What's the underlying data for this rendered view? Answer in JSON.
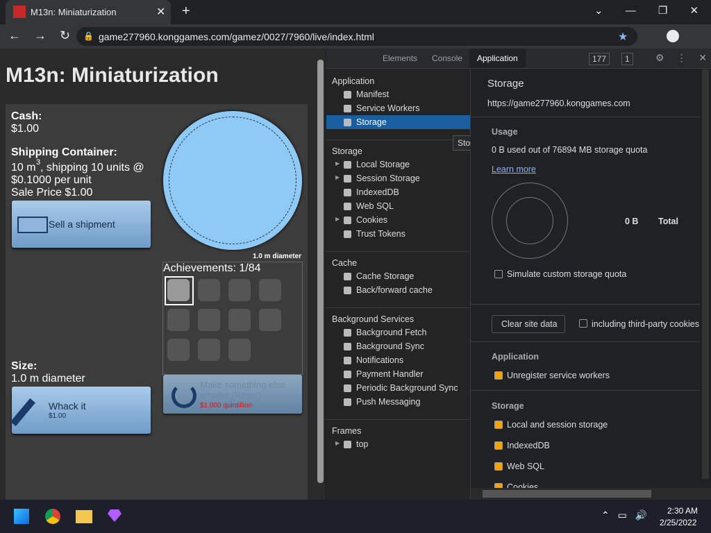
{
  "browser": {
    "tab_title": "M13n: Miniaturization",
    "url": "game277960.konggames.com/gamez/0027/7960/live/index.html"
  },
  "game": {
    "title": "M13n: Miniaturization",
    "cash_label": "Cash:",
    "cash_value": "$1.00",
    "container_label": "Shipping Container:",
    "container_volume": "10 m",
    "container_exponent": "3",
    "container_rest": ", shipping 10 units @",
    "container_rate": "$0.1000 per unit",
    "sale_price": "Sale Price $1.00",
    "sell_button": "Sell a shipment",
    "diameter_label": "1.0 m diameter",
    "achievements": "Achievements: 1/84",
    "size_label": "Size:",
    "size_value": "1.0 m diameter",
    "whack_button": "Whack it",
    "whack_price": "$1.00",
    "reset_button": "Make something else smaller (Reset)",
    "reset_price": "$1.000 quintillion"
  },
  "devtools": {
    "tabs": [
      "Elements",
      "Console",
      "Application"
    ],
    "errors": "177",
    "warnings": "1",
    "sidebar": [
      {
        "heading": "Application",
        "items": [
          "Manifest",
          "Service Workers",
          "Storage"
        ]
      },
      {
        "heading": "Storage",
        "items": [
          "Local Storage",
          "Session Storage",
          "IndexedDB",
          "Web SQL",
          "Cookies",
          "Trust Tokens"
        ]
      },
      {
        "heading": "Cache",
        "items": [
          "Cache Storage",
          "Back/forward cache"
        ]
      },
      {
        "heading": "Background Services",
        "items": [
          "Background Fetch",
          "Background Sync",
          "Notifications",
          "Payment Handler",
          "Periodic Background Sync",
          "Push Messaging"
        ]
      },
      {
        "heading": "Frames",
        "items": [
          "top"
        ]
      }
    ],
    "tooltip": "Storage",
    "main": {
      "title": "Storage",
      "origin": "https://game277960.konggames.com",
      "usage_heading": "Usage",
      "usage_text": "0 B used out of 76894 MB storage quota",
      "learn_more": "Learn more",
      "total_value": "0 B",
      "total_label": "Total",
      "simulate": "Simulate custom storage quota",
      "clear_button": "Clear site data",
      "third_party": "including third-party cookies",
      "application_heading": "Application",
      "unregister": "Unregister service workers",
      "storage_heading": "Storage",
      "storage_items": [
        "Local and session storage",
        "IndexedDB",
        "Web SQL",
        "Cookies"
      ]
    }
  },
  "taskbar": {
    "time": "2:30 AM",
    "date": "2/25/2022"
  }
}
